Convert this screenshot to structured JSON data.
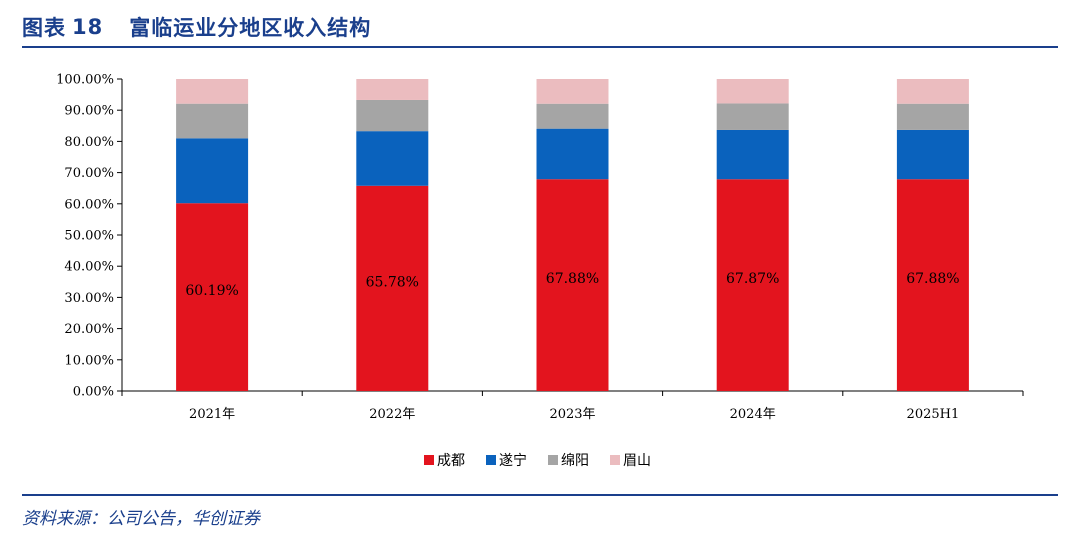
{
  "header": {
    "figure_label": "图表",
    "figure_number": "18",
    "title": "富临运业分地区收入结构"
  },
  "footer": {
    "source": "资料来源：公司公告，华创证券"
  },
  "chart_data": {
    "type": "bar",
    "stacked": true,
    "categories": [
      "2021年",
      "2022年",
      "2023年",
      "2024年",
      "2025H1"
    ],
    "ylim": [
      0,
      100
    ],
    "y_ticks": [
      "0.00%",
      "10.00%",
      "20.00%",
      "30.00%",
      "40.00%",
      "50.00%",
      "60.00%",
      "70.00%",
      "80.00%",
      "90.00%",
      "100.00%"
    ],
    "grid": false,
    "legend_position": "bottom",
    "series": [
      {
        "name": "成都",
        "color": "#e3141e",
        "values": [
          60.19,
          65.78,
          67.88,
          67.87,
          67.88
        ],
        "data_labels": [
          "60.19%",
          "65.78%",
          "67.88%",
          "67.87%",
          "67.88%"
        ]
      },
      {
        "name": "遂宁",
        "color": "#0a62bd",
        "values": [
          20.8,
          17.5,
          16.2,
          15.8,
          15.8
        ]
      },
      {
        "name": "绵阳",
        "color": "#a5a5a5",
        "values": [
          11.1,
          10.0,
          8.0,
          8.5,
          8.4
        ]
      },
      {
        "name": "眉山",
        "color": "#ebbcbf",
        "values": [
          7.91,
          6.72,
          7.92,
          7.83,
          7.92
        ]
      }
    ]
  }
}
